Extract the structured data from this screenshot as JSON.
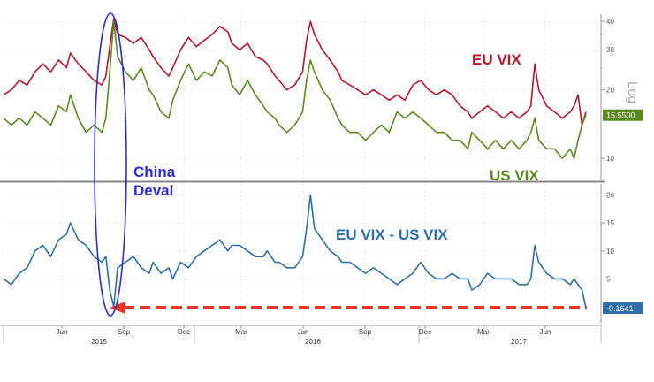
{
  "chart_data": [
    {
      "type": "line",
      "panel": "top",
      "yscale": "log",
      "ylim": [
        8,
        43
      ],
      "yticks": [
        10,
        20,
        30,
        40
      ],
      "yaxis_label": "Log",
      "series": [
        {
          "name": "EU VIX",
          "color": "#b5172b",
          "annotation": "EU VIX",
          "points": [
            [
              0,
              19
            ],
            [
              2,
              20
            ],
            [
              4,
              22
            ],
            [
              6,
              21
            ],
            [
              8,
              24
            ],
            [
              10,
              26
            ],
            [
              12,
              24
            ],
            [
              14,
              27
            ],
            [
              16,
              25
            ],
            [
              17,
              29
            ],
            [
              19,
              26
            ],
            [
              21,
              24
            ],
            [
              23,
              22
            ],
            [
              25,
              21
            ],
            [
              26,
              23
            ],
            [
              27,
              31
            ],
            [
              28,
              41
            ],
            [
              29,
              35
            ],
            [
              31,
              34
            ],
            [
              33,
              32
            ],
            [
              35,
              34
            ],
            [
              37,
              30
            ],
            [
              38,
              28
            ],
            [
              40,
              25
            ],
            [
              42,
              23
            ],
            [
              43,
              25
            ],
            [
              45,
              30
            ],
            [
              47,
              34
            ],
            [
              49,
              31
            ],
            [
              51,
              33
            ],
            [
              53,
              35
            ],
            [
              55,
              38
            ],
            [
              57,
              36
            ],
            [
              58,
              32
            ],
            [
              60,
              30
            ],
            [
              62,
              32
            ],
            [
              64,
              28
            ],
            [
              66,
              27
            ],
            [
              67,
              26
            ],
            [
              69,
              23
            ],
            [
              70,
              22
            ],
            [
              72,
              20
            ],
            [
              74,
              21
            ],
            [
              76,
              24
            ],
            [
              77,
              33
            ],
            [
              78,
              40
            ],
            [
              79,
              35
            ],
            [
              81,
              30
            ],
            [
              83,
              27
            ],
            [
              85,
              24
            ],
            [
              86,
              22
            ],
            [
              88,
              21
            ],
            [
              90,
              20
            ],
            [
              92,
              19
            ],
            [
              94,
              20
            ],
            [
              96,
              19
            ],
            [
              98,
              18
            ],
            [
              100,
              19
            ],
            [
              102,
              18
            ],
            [
              104,
              21
            ],
            [
              106,
              22
            ],
            [
              108,
              20
            ],
            [
              110,
              19
            ],
            [
              112,
              20
            ],
            [
              114,
              19
            ],
            [
              116,
              17
            ],
            [
              118,
              16
            ],
            [
              119,
              15
            ],
            [
              121,
              16
            ],
            [
              123,
              17
            ],
            [
              125,
              16
            ],
            [
              127,
              15
            ],
            [
              129,
              16
            ],
            [
              131,
              15
            ],
            [
              133,
              16
            ],
            [
              134,
              17
            ],
            [
              135,
              26
            ],
            [
              136,
              20
            ],
            [
              138,
              17
            ],
            [
              140,
              16
            ],
            [
              142,
              15
            ],
            [
              144,
              16
            ],
            [
              145,
              17
            ],
            [
              146,
              19
            ],
            [
              147,
              14
            ],
            [
              148,
              16
            ]
          ]
        },
        {
          "name": "US VIX",
          "color": "#5a8a1e",
          "annotation": "US VIX",
          "last_value_label": "15.5500",
          "points": [
            [
              0,
              15
            ],
            [
              2,
              14
            ],
            [
              4,
              15
            ],
            [
              6,
              14
            ],
            [
              8,
              16
            ],
            [
              10,
              15
            ],
            [
              12,
              14
            ],
            [
              14,
              17
            ],
            [
              16,
              16
            ],
            [
              17,
              19
            ],
            [
              19,
              15
            ],
            [
              21,
              13
            ],
            [
              23,
              14
            ],
            [
              25,
              13
            ],
            [
              26,
              15
            ],
            [
              27,
              24
            ],
            [
              28,
              40
            ],
            [
              29,
              28
            ],
            [
              31,
              24
            ],
            [
              33,
              22
            ],
            [
              35,
              25
            ],
            [
              37,
              20
            ],
            [
              38,
              19
            ],
            [
              40,
              16
            ],
            [
              42,
              15
            ],
            [
              43,
              18
            ],
            [
              45,
              22
            ],
            [
              47,
              26
            ],
            [
              49,
              22
            ],
            [
              51,
              24
            ],
            [
              53,
              23
            ],
            [
              55,
              27
            ],
            [
              57,
              25
            ],
            [
              58,
              21
            ],
            [
              60,
              19
            ],
            [
              62,
              22
            ],
            [
              64,
              19
            ],
            [
              66,
              17
            ],
            [
              67,
              16
            ],
            [
              69,
              15
            ],
            [
              70,
              14
            ],
            [
              72,
              13
            ],
            [
              74,
              14
            ],
            [
              76,
              16
            ],
            [
              77,
              22
            ],
            [
              78,
              27
            ],
            [
              79,
              24
            ],
            [
              81,
              20
            ],
            [
              83,
              18
            ],
            [
              85,
              15
            ],
            [
              86,
              14
            ],
            [
              88,
              13
            ],
            [
              90,
              13
            ],
            [
              92,
              12
            ],
            [
              94,
              13
            ],
            [
              96,
              14
            ],
            [
              98,
              13
            ],
            [
              100,
              16
            ],
            [
              102,
              15
            ],
            [
              104,
              16
            ],
            [
              106,
              15
            ],
            [
              108,
              14
            ],
            [
              110,
              13
            ],
            [
              112,
              13
            ],
            [
              114,
              12
            ],
            [
              116,
              12
            ],
            [
              118,
              11
            ],
            [
              119,
              13
            ],
            [
              121,
              12
            ],
            [
              123,
              11
            ],
            [
              125,
              12
            ],
            [
              127,
              11
            ],
            [
              129,
              12
            ],
            [
              131,
              11
            ],
            [
              133,
              12
            ],
            [
              134,
              13
            ],
            [
              135,
              15
            ],
            [
              136,
              12
            ],
            [
              138,
              11
            ],
            [
              140,
              11
            ],
            [
              142,
              10
            ],
            [
              144,
              11
            ],
            [
              145,
              10
            ],
            [
              146,
              12
            ],
            [
              147,
              14
            ],
            [
              148,
              15.55
            ]
          ]
        }
      ]
    },
    {
      "type": "line",
      "panel": "bottom",
      "ylim": [
        -3,
        22
      ],
      "yticks": [
        5,
        10,
        15,
        20
      ],
      "series": [
        {
          "name": "EU VIX - US VIX",
          "color": "#2e6fa8",
          "annotation": "EU VIX - US VIX",
          "last_value_label": "-0.1641",
          "points": [
            [
              0,
              5
            ],
            [
              2,
              4
            ],
            [
              4,
              6
            ],
            [
              6,
              7
            ],
            [
              8,
              10
            ],
            [
              10,
              11
            ],
            [
              12,
              9
            ],
            [
              14,
              12
            ],
            [
              16,
              13
            ],
            [
              17,
              15
            ],
            [
              19,
              12
            ],
            [
              21,
              11
            ],
            [
              23,
              9
            ],
            [
              25,
              8
            ],
            [
              26,
              9
            ],
            [
              27,
              3
            ],
            [
              28,
              0
            ],
            [
              29,
              7
            ],
            [
              31,
              8
            ],
            [
              33,
              9
            ],
            [
              35,
              7
            ],
            [
              37,
              6
            ],
            [
              38,
              8
            ],
            [
              40,
              6
            ],
            [
              42,
              7
            ],
            [
              43,
              5
            ],
            [
              45,
              8
            ],
            [
              47,
              7
            ],
            [
              49,
              9
            ],
            [
              51,
              10
            ],
            [
              53,
              11
            ],
            [
              55,
              12
            ],
            [
              57,
              10
            ],
            [
              58,
              11
            ],
            [
              60,
              11
            ],
            [
              62,
              10
            ],
            [
              64,
              9
            ],
            [
              66,
              9
            ],
            [
              67,
              10
            ],
            [
              69,
              8
            ],
            [
              70,
              8
            ],
            [
              72,
              7
            ],
            [
              74,
              7
            ],
            [
              76,
              9
            ],
            [
              77,
              14
            ],
            [
              78,
              20
            ],
            [
              79,
              14
            ],
            [
              81,
              12
            ],
            [
              83,
              10
            ],
            [
              85,
              9
            ],
            [
              86,
              8
            ],
            [
              88,
              8
            ],
            [
              90,
              7
            ],
            [
              92,
              6
            ],
            [
              94,
              7
            ],
            [
              96,
              6
            ],
            [
              98,
              5
            ],
            [
              100,
              4
            ],
            [
              102,
              5
            ],
            [
              104,
              6
            ],
            [
              106,
              8
            ],
            [
              108,
              6
            ],
            [
              110,
              5
            ],
            [
              112,
              5
            ],
            [
              114,
              6
            ],
            [
              116,
              5
            ],
            [
              118,
              5
            ],
            [
              119,
              3
            ],
            [
              121,
              4
            ],
            [
              123,
              6
            ],
            [
              125,
              5
            ],
            [
              127,
              5
            ],
            [
              129,
              5
            ],
            [
              131,
              4
            ],
            [
              133,
              4
            ],
            [
              134,
              5
            ],
            [
              135,
              11
            ],
            [
              136,
              8
            ],
            [
              138,
              6
            ],
            [
              140,
              5
            ],
            [
              142,
              5
            ],
            [
              144,
              4
            ],
            [
              145,
              5
            ],
            [
              146,
              4
            ],
            [
              147,
              3
            ],
            [
              148,
              -0.16
            ]
          ]
        }
      ],
      "reference_line": {
        "value": -0.16,
        "style": "dashed-arrow",
        "color": "#e8352a"
      }
    }
  ],
  "x_axis": {
    "ticks": [
      "Jun",
      "Sep",
      "Dec",
      "Mar",
      "Jun",
      "Sep",
      "Dec",
      "Mar",
      "Jun"
    ],
    "years": [
      "2015",
      "2016",
      "2017"
    ]
  },
  "highlight": {
    "label_line1": "China",
    "label_line2": "Deval",
    "color": "#2c2cd8"
  }
}
